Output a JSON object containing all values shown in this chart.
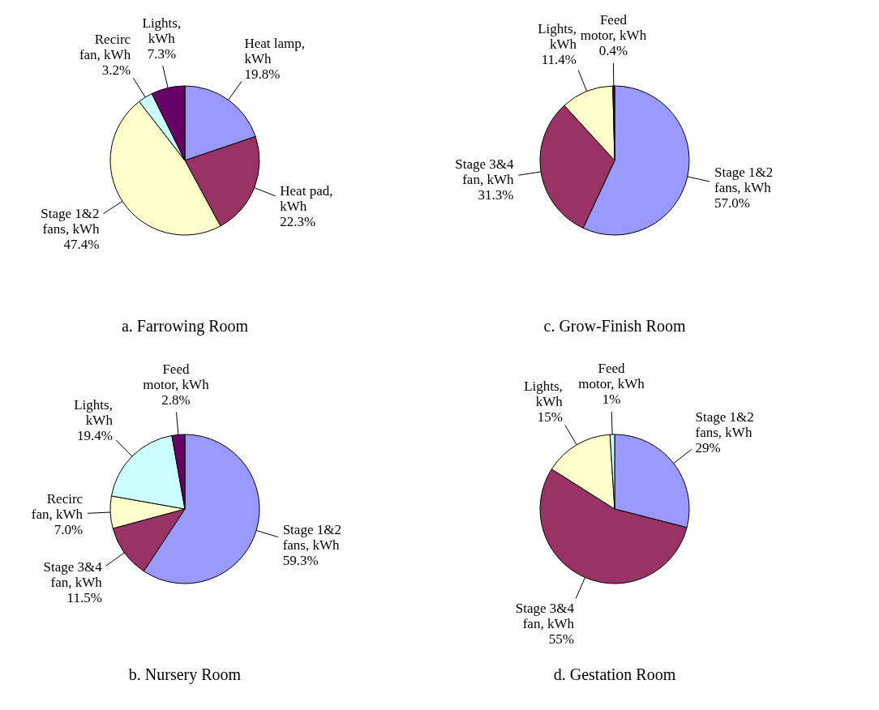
{
  "chart_data": [
    {
      "type": "pie",
      "title": "a. Farrowing Room",
      "categories": [
        "Heat lamp, kWh",
        "Heat pad, kWh",
        "Stage 1&2 fans, kWh",
        "Recirc fan, kWh",
        "Lights, kWh"
      ],
      "values": [
        19.8,
        22.3,
        47.4,
        3.2,
        7.3
      ],
      "colors": [
        "#9999ff",
        "#993366",
        "#ffffcc",
        "#ccffff",
        "#660066"
      ],
      "value_labels": [
        "19.8%",
        "22.3%",
        "47.4%",
        "3.2%",
        "7.3%"
      ]
    },
    {
      "type": "pie",
      "title": "c. Grow-Finish Room",
      "categories": [
        "Stage 1&2 fans, kWh",
        "Stage 3&4 fan, kWh",
        "Lights, kWh",
        "Feed motor, kWh"
      ],
      "values": [
        57.0,
        31.3,
        11.4,
        0.4
      ],
      "colors": [
        "#9999ff",
        "#993366",
        "#ffffcc",
        "#660066"
      ],
      "value_labels": [
        "57.0%",
        "31.3%",
        "11.4%",
        "0.4%"
      ]
    },
    {
      "type": "pie",
      "title": "b. Nursery Room",
      "categories": [
        "Stage 1&2 fans, kWh",
        "Stage 3&4 fan, kWh",
        "Recirc fan, kWh",
        "Lights, kWh",
        "Feed motor, kWh"
      ],
      "values": [
        59.3,
        11.5,
        7.0,
        19.4,
        2.8
      ],
      "colors": [
        "#9999ff",
        "#993366",
        "#ffffcc",
        "#ccffff",
        "#660066"
      ],
      "value_labels": [
        "59.3%",
        "11.5%",
        "7.0%",
        "19.4%",
        "2.8%"
      ]
    },
    {
      "type": "pie",
      "title": "d. Gestation Room",
      "categories": [
        "Stage 1&2 fans, kWh",
        "Stage 3&4 fan, kWh",
        "Lights, kWh",
        "Feed motor, kWh"
      ],
      "values": [
        29,
        55,
        15,
        1
      ],
      "colors": [
        "#9999ff",
        "#993366",
        "#ffffcc",
        "#ccffff"
      ],
      "value_labels": [
        "29%",
        "55%",
        "15%",
        "1%"
      ]
    }
  ]
}
